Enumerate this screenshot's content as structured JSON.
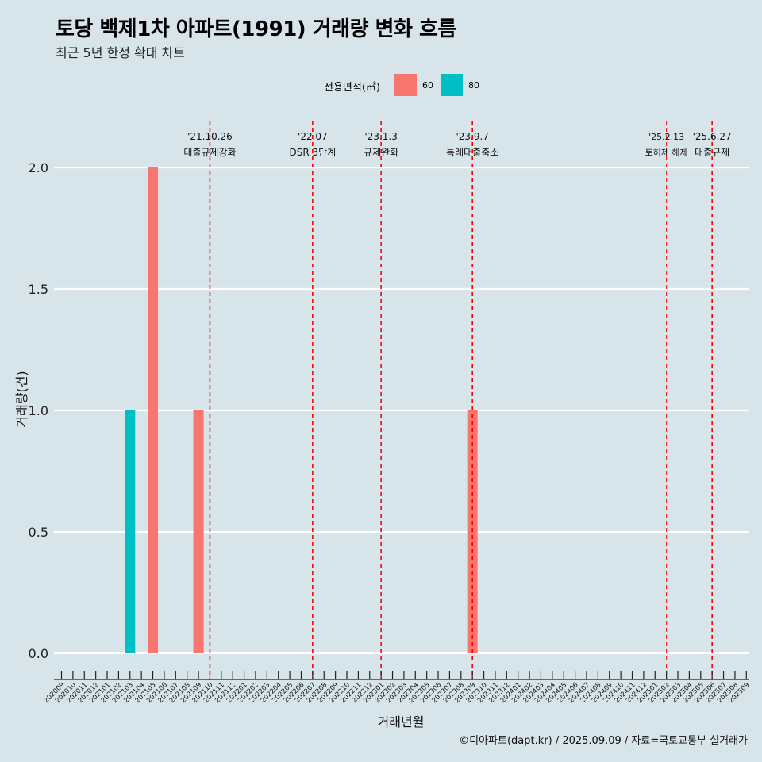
{
  "title": "토당 백제1차 아파트(1991) 거래량 변화 흐름",
  "subtitle": "최근 5년 한정 확대 차트",
  "caption": "©디아파트(dapt.kr) / 2025.09.09 / 자료=국토교통부 실거래가",
  "legend": {
    "title": "전용면적(㎡)",
    "items": [
      {
        "label": "60",
        "color": "#f8766d"
      },
      {
        "label": "80",
        "color": "#00bfc4"
      }
    ]
  },
  "chart_data": {
    "type": "bar",
    "xlabel": "거래년월",
    "ylabel": "거래량(건)",
    "ylim": [
      0,
      2
    ],
    "yticks": [
      "0.0",
      "0.5",
      "1.0",
      "1.5",
      "2.0"
    ],
    "categories": [
      "202009",
      "202010",
      "202011",
      "202012",
      "202101",
      "202102",
      "202103",
      "202104",
      "202105",
      "202106",
      "202107",
      "202108",
      "202109",
      "202110",
      "202111",
      "202112",
      "202201",
      "202202",
      "202203",
      "202204",
      "202205",
      "202206",
      "202207",
      "202208",
      "202209",
      "202210",
      "202211",
      "202212",
      "202301",
      "202302",
      "202303",
      "202304",
      "202305",
      "202306",
      "202307",
      "202308",
      "202309",
      "202310",
      "202311",
      "202312",
      "202401",
      "202402",
      "202403",
      "202404",
      "202405",
      "202406",
      "202407",
      "202408",
      "202409",
      "202410",
      "202411",
      "202412",
      "202501",
      "202502",
      "202503",
      "202504",
      "202505",
      "202506",
      "202507",
      "202508",
      "202509"
    ],
    "series": [
      {
        "name": "60",
        "color": "#f8766d",
        "points": [
          {
            "x": "202105",
            "y": 2
          },
          {
            "x": "202109",
            "y": 1
          },
          {
            "x": "202309",
            "y": 1
          }
        ]
      },
      {
        "name": "80",
        "color": "#00bfc4",
        "points": [
          {
            "x": "202103",
            "y": 1
          }
        ]
      }
    ],
    "events": [
      {
        "x": "202110",
        "date": "'21.10.26",
        "label": "대출규제강화"
      },
      {
        "x": "202207",
        "date": "'22.07",
        "label": "DSR 3단계"
      },
      {
        "x": "202301",
        "date": "'23.1.3",
        "label": "규제완화"
      },
      {
        "x": "202309",
        "date": "'23.9.7",
        "label": "특례대출축소"
      },
      {
        "x": "202502",
        "date": "'25.2.13",
        "label": "토허제 해제"
      },
      {
        "x": "202506",
        "date": "'25.6.27",
        "label": "대출규제"
      }
    ]
  }
}
